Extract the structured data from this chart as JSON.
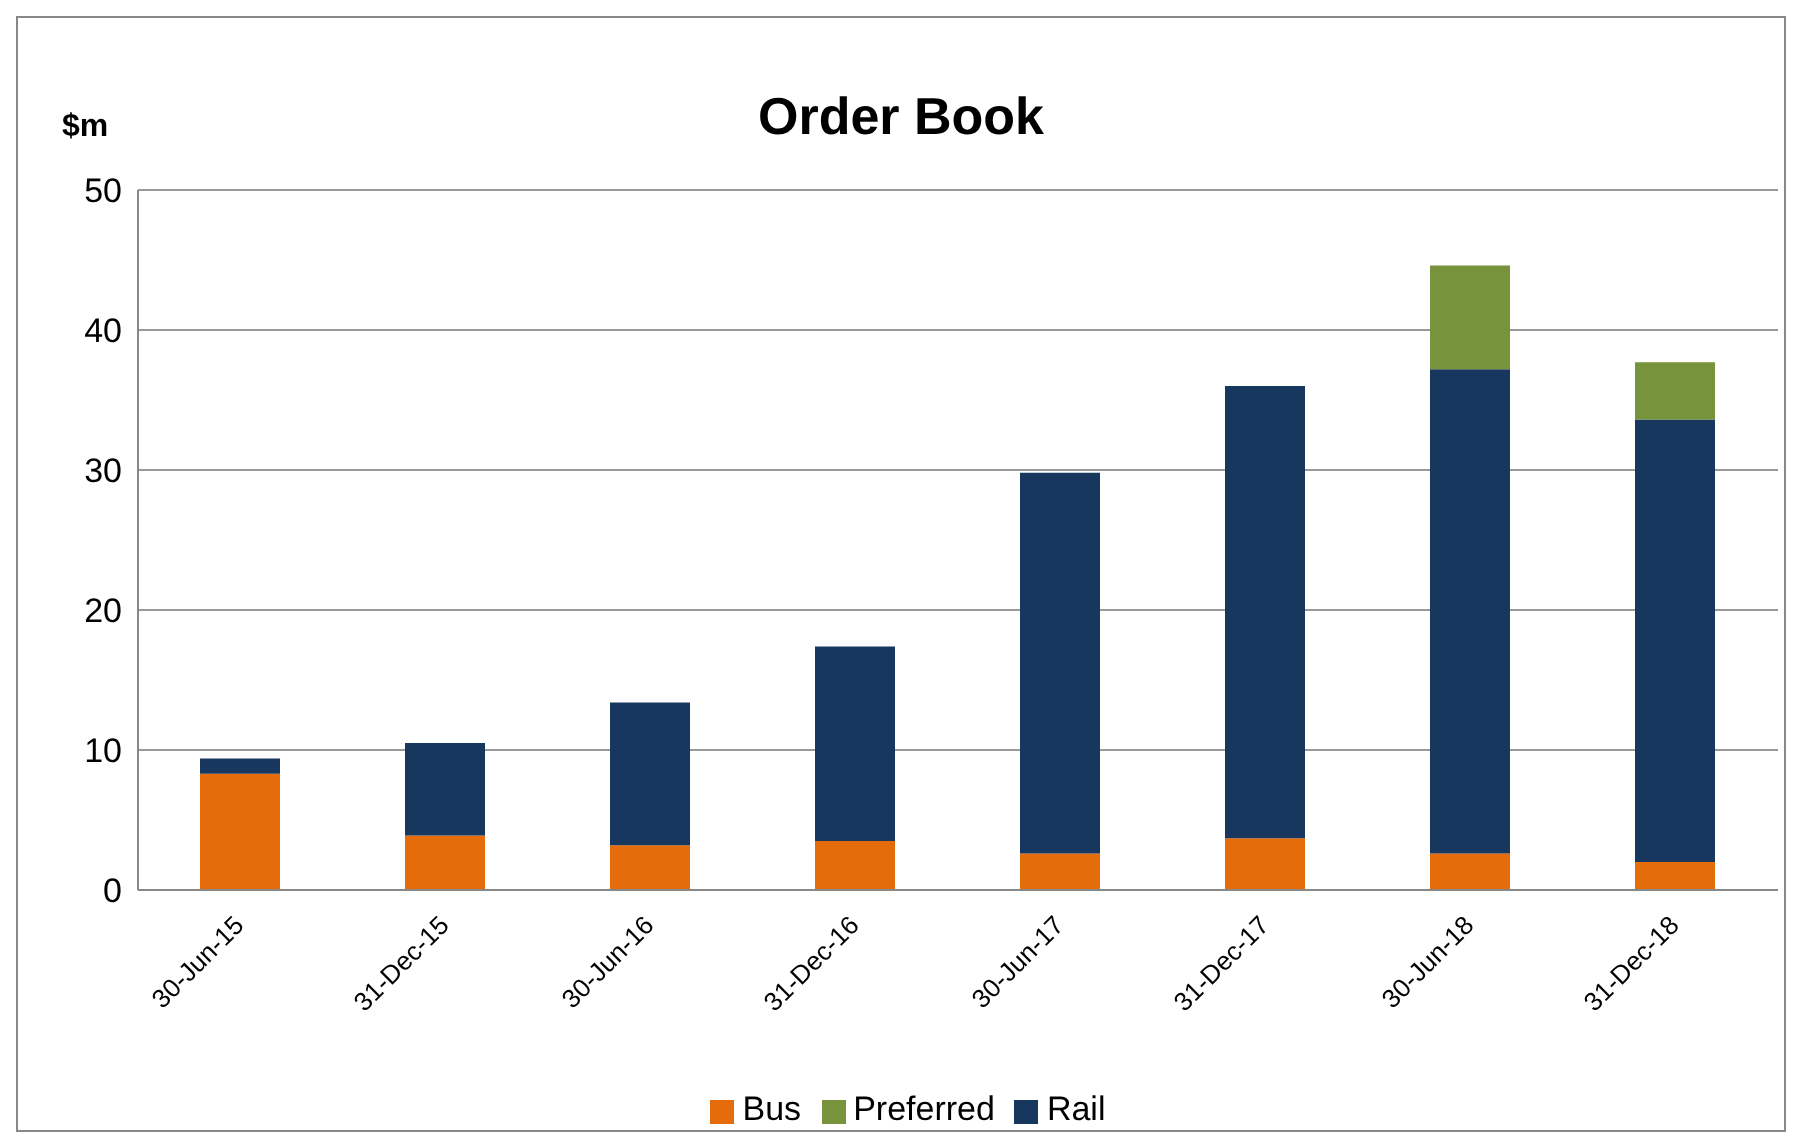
{
  "chart_data": {
    "type": "bar",
    "title": "Order Book",
    "ylabel": "$m",
    "categories": [
      "30-Jun-15",
      "31-Dec-15",
      "30-Jun-16",
      "31-Dec-16",
      "30-Jun-17",
      "31-Dec-17",
      "30-Jun-18",
      "31-Dec-18"
    ],
    "series": [
      {
        "name": "Bus",
        "color": "#e46c0a",
        "values": [
          8.3,
          3.9,
          3.2,
          3.5,
          2.6,
          3.7,
          2.6,
          2.0
        ]
      },
      {
        "name": "Rail",
        "color": "#17375e",
        "values": [
          1.1,
          6.6,
          10.2,
          13.9,
          27.2,
          32.3,
          34.6,
          31.6
        ]
      },
      {
        "name": "Preferred",
        "color": "#77933c",
        "values": [
          0,
          0,
          0,
          0,
          0,
          0,
          7.4,
          4.1
        ]
      }
    ],
    "stacked": true,
    "ylim": [
      0,
      50
    ],
    "yticks": [
      0,
      10,
      20,
      30,
      40,
      50
    ],
    "grid": "y",
    "legend": "bottom"
  }
}
